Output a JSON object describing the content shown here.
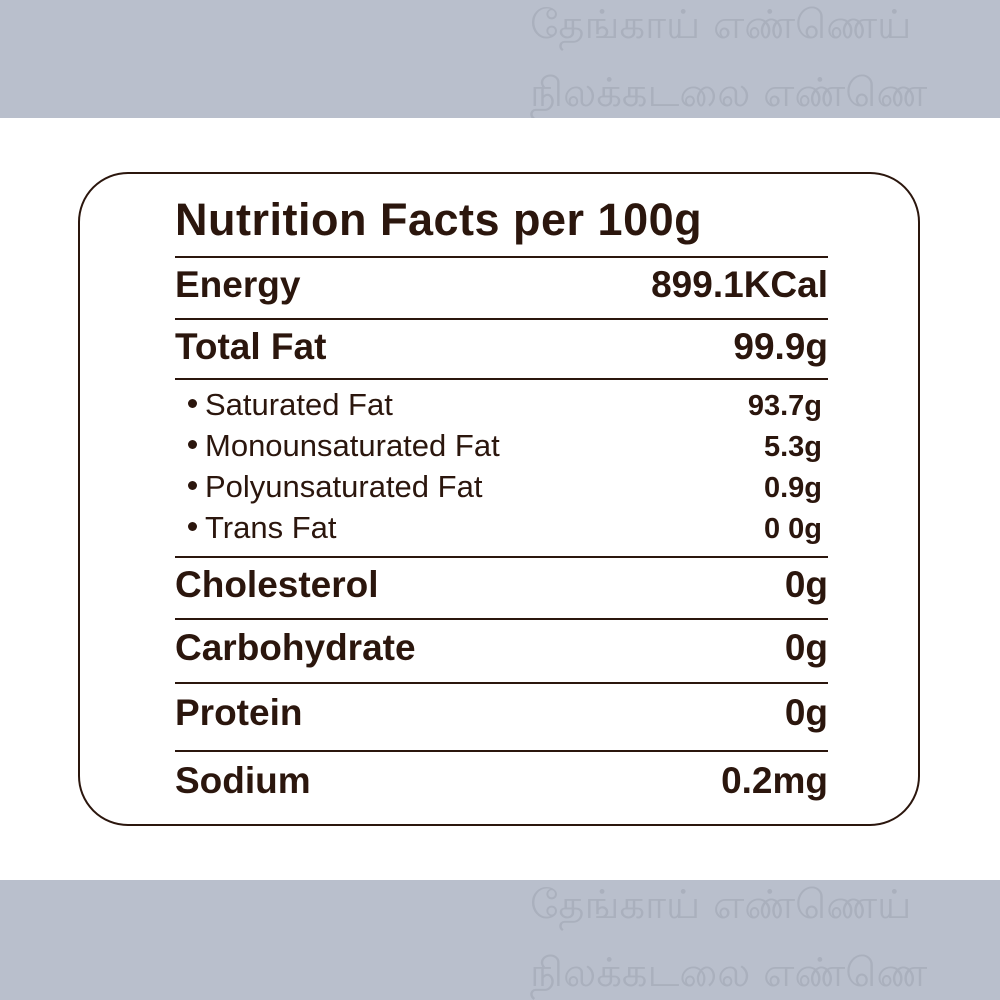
{
  "watermark": {
    "line1": "தேங்காய் எண்ணெய்",
    "line2": "நிலக்கடலை எண்ணெ"
  },
  "colors": {
    "text": "#2b160d",
    "band": "#b9bfcc"
  },
  "label": {
    "title": "Nutrition Facts per 100g",
    "rows": [
      {
        "name": "Energy",
        "value": "899.1KCal"
      },
      {
        "name": "Total Fat",
        "value": "99.9g"
      },
      {
        "name": "Saturated Fat",
        "value": "93.7g"
      },
      {
        "name": "Monounsaturated Fat",
        "value": "5.3g"
      },
      {
        "name": "Polyunsaturated Fat",
        "value": "0.9g"
      },
      {
        "name": "Trans Fat",
        "value": "0 0g"
      },
      {
        "name": "Cholesterol",
        "value": "0g"
      },
      {
        "name": "Carbohydrate",
        "value": "0g"
      },
      {
        "name": "Protein",
        "value": "0g"
      },
      {
        "name": "Sodium",
        "value": "0.2mg"
      }
    ]
  }
}
